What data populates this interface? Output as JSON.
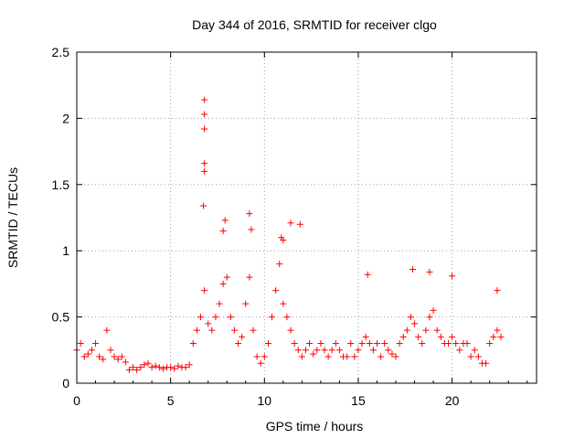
{
  "chart_data": {
    "type": "scatter",
    "title": "Day 344 of 2016, SRMTID for receiver clgo",
    "xlabel": "GPS time / hours",
    "ylabel": "SRMTID / TECUs",
    "xlim": [
      0,
      24.5
    ],
    "ylim": [
      0,
      2.5
    ],
    "x_ticks": [
      0,
      5,
      10,
      15,
      20
    ],
    "x_tick_labels": [
      "0",
      "5",
      "10",
      "15",
      "20"
    ],
    "y_ticks": [
      0,
      0.5,
      1,
      1.5,
      2,
      2.5
    ],
    "y_tick_labels": [
      "0",
      "0.5",
      "1",
      "1.5",
      "2",
      "2.5"
    ],
    "grid": true,
    "marker": "+",
    "series": [
      {
        "name": "SRMTID",
        "color": "#ff0000",
        "x": [
          0.0,
          0.2,
          0.4,
          0.6,
          0.8,
          1.0,
          1.2,
          1.4,
          1.6,
          1.8,
          2.0,
          2.2,
          2.4,
          2.6,
          2.8,
          3.0,
          3.2,
          3.4,
          3.6,
          3.8,
          4.0,
          4.2,
          4.4,
          4.6,
          4.8,
          5.0,
          5.2,
          5.4,
          5.6,
          5.8,
          6.0,
          6.2,
          6.4,
          6.6,
          6.8,
          7.0,
          7.2,
          7.4,
          7.6,
          7.8,
          8.0,
          8.2,
          8.4,
          8.6,
          8.8,
          9.0,
          9.2,
          9.4,
          9.6,
          9.8,
          10.0,
          10.2,
          10.4,
          10.6,
          10.8,
          11.0,
          11.2,
          11.4,
          11.6,
          11.8,
          12.0,
          12.2,
          12.4,
          12.6,
          12.8,
          13.0,
          13.2,
          13.4,
          13.6,
          13.8,
          14.0,
          14.2,
          14.4,
          14.6,
          14.8,
          15.0,
          15.2,
          15.4,
          15.6,
          15.8,
          16.0,
          16.2,
          16.4,
          16.6,
          16.8,
          17.0,
          17.2,
          17.4,
          17.6,
          17.8,
          18.0,
          18.2,
          18.4,
          18.6,
          18.8,
          19.0,
          19.2,
          19.4,
          19.6,
          19.8,
          20.0,
          20.2,
          20.4,
          20.6,
          20.8,
          21.0,
          21.2,
          21.4,
          21.6,
          21.8,
          22.0,
          22.2,
          22.4,
          22.6,
          6.8,
          6.8,
          6.8,
          6.8,
          6.8,
          6.75,
          7.9,
          7.8,
          9.2,
          9.3,
          11.4,
          11.9,
          10.9,
          11.0,
          15.5,
          17.9,
          18.8,
          20.0,
          22.4
        ],
        "y": [
          0.25,
          0.3,
          0.2,
          0.22,
          0.25,
          0.3,
          0.2,
          0.18,
          0.4,
          0.25,
          0.2,
          0.18,
          0.2,
          0.16,
          0.1,
          0.12,
          0.1,
          0.12,
          0.14,
          0.15,
          0.12,
          0.13,
          0.12,
          0.11,
          0.12,
          0.12,
          0.11,
          0.13,
          0.12,
          0.12,
          0.14,
          0.3,
          0.4,
          0.5,
          0.7,
          0.45,
          0.4,
          0.5,
          0.6,
          0.75,
          0.8,
          0.5,
          0.4,
          0.3,
          0.35,
          0.6,
          0.8,
          0.4,
          0.2,
          0.15,
          0.2,
          0.3,
          0.5,
          0.7,
          0.9,
          0.6,
          0.5,
          0.4,
          0.3,
          0.25,
          0.2,
          0.25,
          0.3,
          0.22,
          0.25,
          0.3,
          0.25,
          0.2,
          0.25,
          0.3,
          0.25,
          0.2,
          0.2,
          0.3,
          0.2,
          0.25,
          0.3,
          0.35,
          0.3,
          0.25,
          0.3,
          0.2,
          0.3,
          0.25,
          0.22,
          0.2,
          0.3,
          0.35,
          0.4,
          0.5,
          0.45,
          0.35,
          0.3,
          0.4,
          0.5,
          0.55,
          0.4,
          0.35,
          0.3,
          0.3,
          0.35,
          0.3,
          0.25,
          0.3,
          0.3,
          0.2,
          0.25,
          0.2,
          0.15,
          0.15,
          0.3,
          0.35,
          0.4,
          0.35,
          2.14,
          2.03,
          1.92,
          1.66,
          1.6,
          1.34,
          1.23,
          1.15,
          1.28,
          1.16,
          1.21,
          1.2,
          1.1,
          1.08,
          0.82,
          0.86,
          0.84,
          0.81,
          0.7
        ]
      }
    ]
  }
}
